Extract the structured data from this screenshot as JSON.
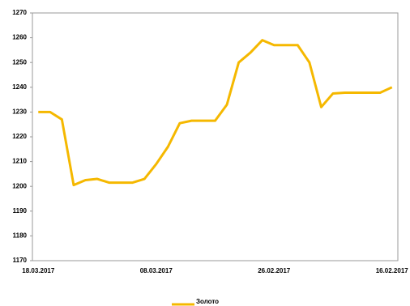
{
  "chart_data": {
    "type": "line",
    "categories": [
      "18.03.2017",
      null,
      null,
      null,
      null,
      null,
      null,
      null,
      null,
      null,
      "08.03.2017",
      null,
      null,
      null,
      null,
      null,
      null,
      null,
      null,
      null,
      "26.02.2017",
      null,
      null,
      null,
      null,
      null,
      null,
      null,
      null,
      null,
      "16.02.2017"
    ],
    "series": [
      {
        "name": "Золото",
        "color": "#f5b800",
        "values": [
          1230,
          1230,
          1227,
          1200.5,
          1202.5,
          1203,
          1201.5,
          1201.5,
          1201.5,
          1203,
          1209,
          1216,
          1225.5,
          1226.5,
          1226.5,
          1226.5,
          1233,
          1250,
          1254,
          1259,
          1257,
          1257,
          1257,
          1250,
          1232,
          1237.5,
          1237.8,
          1237.8,
          1237.8,
          1237.8,
          1240
        ]
      }
    ],
    "ylim": [
      1170,
      1270
    ],
    "yticks": [
      1170,
      1180,
      1190,
      1200,
      1210,
      1220,
      1230,
      1240,
      1250,
      1260,
      1270
    ],
    "grid": false,
    "legend": "bottom"
  }
}
